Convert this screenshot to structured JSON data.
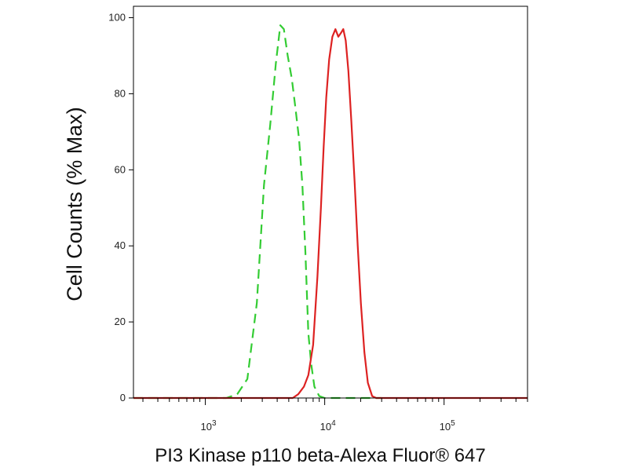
{
  "chart_data": {
    "type": "line",
    "xlabel": "PI3 Kinase p110 beta-Alexa Fluor® 647",
    "ylabel": "Cell Counts (% Max)",
    "x_scale": "log",
    "xlim": [
      250,
      500000
    ],
    "ylim": [
      0,
      103
    ],
    "y_ticks": [
      0,
      20,
      40,
      60,
      80,
      100
    ],
    "x_ticks": [
      {
        "value": 1000,
        "base": "10",
        "exp": "3"
      },
      {
        "value": 10000,
        "base": "10",
        "exp": "4"
      },
      {
        "value": 100000,
        "base": "10",
        "exp": "5"
      }
    ],
    "grid": false,
    "series": [
      {
        "color": "#33cc33",
        "dash": "dashed",
        "points": [
          [
            250,
            0
          ],
          [
            1500,
            0
          ],
          [
            1850,
            1
          ],
          [
            2250,
            5
          ],
          [
            2700,
            25
          ],
          [
            3100,
            56
          ],
          [
            3500,
            72
          ],
          [
            3900,
            88
          ],
          [
            4250,
            98
          ],
          [
            4550,
            97
          ],
          [
            4900,
            90
          ],
          [
            5300,
            84
          ],
          [
            5700,
            76
          ],
          [
            6100,
            68
          ],
          [
            6500,
            56
          ],
          [
            6900,
            38
          ],
          [
            7300,
            17
          ],
          [
            7700,
            9
          ],
          [
            8200,
            3
          ],
          [
            9000,
            0.5
          ],
          [
            10000,
            0
          ],
          [
            30000,
            0
          ]
        ]
      },
      {
        "color": "#dd2222",
        "dash": "solid",
        "points": [
          [
            250,
            0
          ],
          [
            5400,
            0
          ],
          [
            6000,
            1
          ],
          [
            6700,
            3
          ],
          [
            7300,
            6
          ],
          [
            8000,
            14
          ],
          [
            8700,
            32
          ],
          [
            9300,
            50
          ],
          [
            9800,
            66
          ],
          [
            10300,
            79
          ],
          [
            10900,
            89
          ],
          [
            11600,
            95
          ],
          [
            12300,
            97
          ],
          [
            13000,
            95
          ],
          [
            13700,
            96
          ],
          [
            14300,
            97
          ],
          [
            15000,
            94
          ],
          [
            15800,
            86
          ],
          [
            16700,
            73
          ],
          [
            17800,
            57
          ],
          [
            18900,
            40
          ],
          [
            20100,
            25
          ],
          [
            21500,
            12
          ],
          [
            23000,
            4
          ],
          [
            25000,
            0.5
          ],
          [
            27000,
            0
          ],
          [
            500000,
            0
          ]
        ]
      }
    ]
  }
}
